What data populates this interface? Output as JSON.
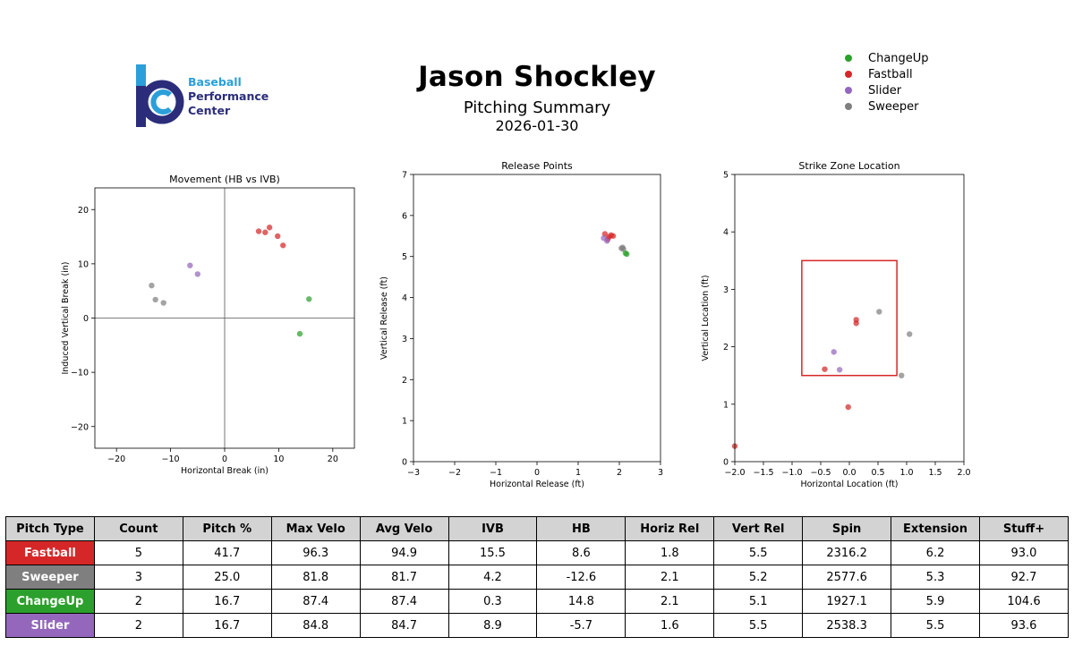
{
  "logo": {
    "line1": "Baseball",
    "line2": "Performance",
    "line3": "Center",
    "colors": {
      "light": "#2b9fd9",
      "dark": "#2b2d7a"
    }
  },
  "header": {
    "title": "Jason Shockley",
    "subtitle": "Pitching Summary",
    "date": "2026-01-30"
  },
  "legend": [
    {
      "label": "ChangeUp",
      "color": "#2ca02c"
    },
    {
      "label": "Fastball",
      "color": "#d62728"
    },
    {
      "label": "Slider",
      "color": "#9467bd"
    },
    {
      "label": "Sweeper",
      "color": "#7f7f7f"
    }
  ],
  "chart_data": [
    {
      "type": "scatter",
      "title": "Movement (HB vs IVB)",
      "xlabel": "Horizontal Break (in)",
      "ylabel": "Induced Vertical Break (in)",
      "xlim": [
        -24,
        24
      ],
      "ylim": [
        -24,
        24
      ],
      "xticks": [
        -20,
        -10,
        0,
        10,
        20
      ],
      "yticks": [
        -20,
        -10,
        0,
        10,
        20
      ],
      "zero_lines": true,
      "series": [
        {
          "name": "Fastball",
          "color": "#d62728",
          "points": [
            [
              6.3,
              16
            ],
            [
              7.5,
              15.8
            ],
            [
              8.3,
              16.7
            ],
            [
              9.8,
              15.1
            ],
            [
              10.8,
              13.4
            ]
          ]
        },
        {
          "name": "Sweeper",
          "color": "#7f7f7f",
          "points": [
            [
              -13.5,
              6
            ],
            [
              -12.8,
              3.4
            ],
            [
              -11.3,
              2.8
            ]
          ]
        },
        {
          "name": "ChangeUp",
          "color": "#2ca02c",
          "points": [
            [
              15.6,
              3.5
            ],
            [
              13.9,
              -2.9
            ]
          ]
        },
        {
          "name": "Slider",
          "color": "#9467bd",
          "points": [
            [
              -6.4,
              9.7
            ],
            [
              -5,
              8.1
            ]
          ]
        }
      ]
    },
    {
      "type": "scatter",
      "title": "Release Points",
      "xlabel": "Horizontal Release (ft)",
      "ylabel": "Vertical Release (ft)",
      "xlim": [
        -3,
        3
      ],
      "ylim": [
        0,
        7
      ],
      "xticks": [
        -3,
        -2,
        -1,
        0,
        1,
        2,
        3
      ],
      "yticks": [
        0,
        1,
        2,
        3,
        4,
        5,
        6,
        7
      ],
      "series": [
        {
          "name": "Fastball",
          "color": "#d62728",
          "points": [
            [
              1.65,
              5.55
            ],
            [
              1.75,
              5.48
            ],
            [
              1.8,
              5.52
            ],
            [
              1.72,
              5.42
            ],
            [
              1.85,
              5.5
            ]
          ]
        },
        {
          "name": "Sweeper",
          "color": "#7f7f7f",
          "points": [
            [
              2.05,
              5.2
            ],
            [
              2.1,
              5.18
            ],
            [
              2.08,
              5.22
            ]
          ]
        },
        {
          "name": "ChangeUp",
          "color": "#2ca02c",
          "points": [
            [
              2.15,
              5.08
            ],
            [
              2.18,
              5.06
            ]
          ]
        },
        {
          "name": "Slider",
          "color": "#9467bd",
          "points": [
            [
              1.62,
              5.45
            ],
            [
              1.7,
              5.38
            ]
          ]
        }
      ]
    },
    {
      "type": "scatter",
      "title": "Strike Zone Location",
      "xlabel": "Horizontal Location (ft)",
      "ylabel": "Vertical Location (ft)",
      "xlim": [
        -2.0,
        2.0
      ],
      "ylim": [
        0,
        5
      ],
      "xticks": [
        -2.0,
        -1.5,
        -1.0,
        -0.5,
        0.0,
        0.5,
        1.0,
        1.5,
        2.0
      ],
      "yticks": [
        0,
        1,
        2,
        3,
        4,
        5
      ],
      "xtick_labels": [
        "−2.0",
        "−1.5",
        "−1.0",
        "−0.5",
        "0.0",
        "0.5",
        "1.0",
        "1.5",
        "2.0"
      ],
      "strike_zone": {
        "x": [
          -0.83,
          0.83
        ],
        "y": [
          1.5,
          3.5
        ],
        "color": "#d62728"
      },
      "series": [
        {
          "name": "Fastball",
          "color": "#d62728",
          "points": [
            [
              0.12,
              2.47
            ],
            [
              0.12,
              2.41
            ],
            [
              -0.43,
              1.61
            ],
            [
              -0.02,
              0.95
            ],
            [
              -2.0,
              0.27
            ]
          ]
        },
        {
          "name": "Sweeper",
          "color": "#7f7f7f",
          "points": [
            [
              0.52,
              2.61
            ],
            [
              1.05,
              2.22
            ],
            [
              0.91,
              1.5
            ]
          ]
        },
        {
          "name": "Slider",
          "color": "#9467bd",
          "points": [
            [
              -0.27,
              1.91
            ],
            [
              -0.17,
              1.6
            ]
          ]
        }
      ]
    }
  ],
  "table": {
    "headers": [
      "Pitch Type",
      "Count",
      "Pitch %",
      "Max Velo",
      "Avg Velo",
      "IVB",
      "HB",
      "Horiz Rel",
      "Vert Rel",
      "Spin",
      "Extension",
      "Stuff+"
    ],
    "rows": [
      {
        "type": "Fastball",
        "color": "#d62728",
        "cells": [
          "5",
          "41.7",
          "96.3",
          "94.9",
          "15.5",
          "8.6",
          "1.8",
          "5.5",
          "2316.2",
          "6.2",
          "93.0"
        ]
      },
      {
        "type": "Sweeper",
        "color": "#7f7f7f",
        "cells": [
          "3",
          "25.0",
          "81.8",
          "81.7",
          "4.2",
          "-12.6",
          "2.1",
          "5.2",
          "2577.6",
          "5.3",
          "92.7"
        ]
      },
      {
        "type": "ChangeUp",
        "color": "#2ca02c",
        "cells": [
          "2",
          "16.7",
          "87.4",
          "87.4",
          "0.3",
          "14.8",
          "2.1",
          "5.1",
          "1927.1",
          "5.9",
          "104.6"
        ]
      },
      {
        "type": "Slider",
        "color": "#9467bd",
        "cells": [
          "2",
          "16.7",
          "84.8",
          "84.7",
          "8.9",
          "-5.7",
          "1.6",
          "5.5",
          "2538.3",
          "5.5",
          "93.6"
        ]
      }
    ]
  }
}
